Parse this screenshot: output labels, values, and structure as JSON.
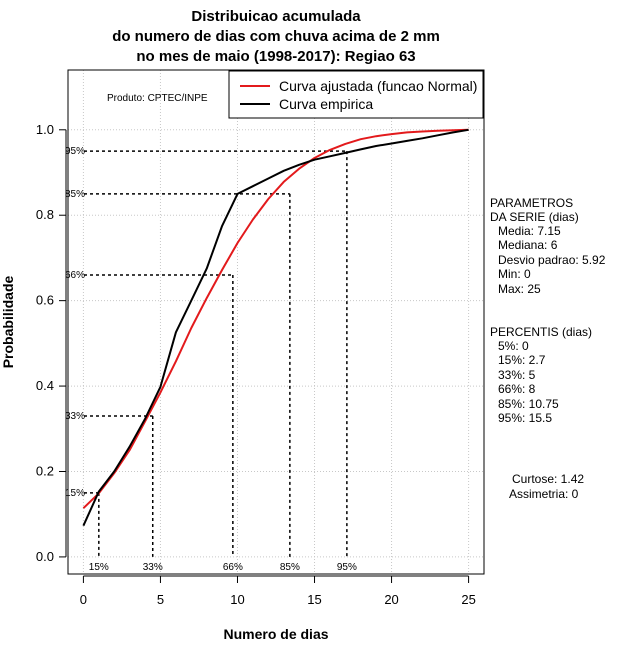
{
  "chart_data": {
    "type": "line",
    "title_lines": [
      "Distribuicao acumulada",
      "do numero de dias com chuva acima de 2 mm",
      "no mes de maio (1998-2017): Regiao 63"
    ],
    "xlabel": "Numero de dias",
    "ylabel": "Probabilidade",
    "xlim": [
      -1,
      26
    ],
    "ylim": [
      -0.04,
      1.14
    ],
    "xticks": [
      0,
      5,
      10,
      15,
      20,
      25
    ],
    "yticks": [
      0.0,
      0.2,
      0.4,
      0.6,
      0.8,
      1.0
    ],
    "xtick_labels": [
      "0",
      "5",
      "10",
      "15",
      "20",
      "25"
    ],
    "ytick_labels": [
      "0.0",
      "0.2",
      "0.4",
      "0.6",
      "0.8",
      "1.0"
    ],
    "grid": true,
    "product_label": "Produto: CPTEC/INPE",
    "legend": {
      "position": "top-right",
      "entries": [
        {
          "label": "Curva ajustada (funcao Normal)",
          "color": "#e31a1c"
        },
        {
          "label": "Curva empirica",
          "color": "#000000"
        }
      ]
    },
    "series": [
      {
        "name": "Curva ajustada (funcao Normal)",
        "color": "#e31a1c",
        "x": [
          0,
          1,
          2,
          3,
          4,
          5,
          6,
          7,
          8,
          9,
          10,
          11,
          12,
          13,
          14,
          15,
          16,
          17,
          18,
          19,
          20,
          21,
          22,
          23,
          24,
          25
        ],
        "y": [
          0.114,
          0.149,
          0.196,
          0.25,
          0.317,
          0.385,
          0.458,
          0.536,
          0.606,
          0.672,
          0.735,
          0.79,
          0.838,
          0.878,
          0.909,
          0.934,
          0.953,
          0.967,
          0.978,
          0.985,
          0.99,
          0.994,
          0.996,
          0.998,
          0.999,
          1.0
        ]
      },
      {
        "name": "Curva empirica",
        "color": "#000000",
        "x": [
          0,
          1,
          2,
          3,
          4,
          5,
          6,
          7,
          8,
          9,
          10,
          11,
          12,
          13,
          14,
          15,
          16,
          17,
          18,
          19,
          20,
          21,
          22,
          23,
          24,
          25
        ],
        "y": [
          0.073,
          0.153,
          0.2,
          0.258,
          0.323,
          0.398,
          0.526,
          0.6,
          0.675,
          0.775,
          0.85,
          0.868,
          0.886,
          0.904,
          0.918,
          0.93,
          0.938,
          0.946,
          0.954,
          0.962,
          0.968,
          0.974,
          0.98,
          0.987,
          0.994,
          1.0
        ]
      }
    ],
    "percentile_markers": [
      {
        "label": "15%",
        "x": 1.0,
        "y": 0.15
      },
      {
        "label": "33%",
        "x": 4.5,
        "y": 0.33
      },
      {
        "label": "66%",
        "x": 9.7,
        "y": 0.66
      },
      {
        "label": "85%",
        "x": 13.4,
        "y": 0.85
      },
      {
        "label": "95%",
        "x": 17.1,
        "y": 0.95
      }
    ],
    "parametros": {
      "heading_lines": [
        "PARAMETROS",
        "DA SERIE (dias)"
      ],
      "items": [
        "Media: 7.15",
        "Mediana: 6",
        "Desvio padrao: 5.92",
        "Min: 0",
        "Max: 25"
      ]
    },
    "percentis": {
      "heading": "PERCENTIS (dias)",
      "items": [
        "5%: 0",
        "15%: 2.7",
        "33%: 5",
        "66%: 8",
        "85%: 10.75",
        "95%: 15.5"
      ]
    },
    "moments": {
      "items": [
        "Curtose: 1.42",
        "Assimetria: 0"
      ]
    }
  }
}
